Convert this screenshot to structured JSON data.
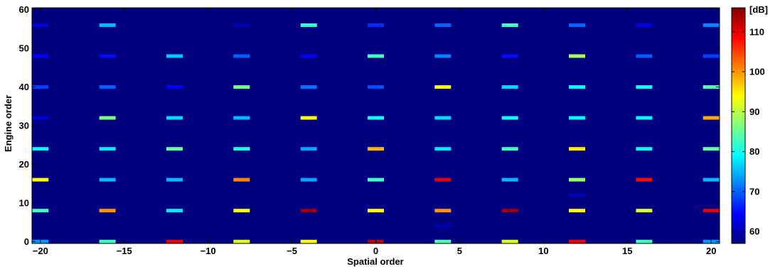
{
  "chart_data": {
    "type": "heatmap",
    "xlabel": "Spatial order",
    "ylabel": "Engine order",
    "xlim": [
      -20.5,
      20.5
    ],
    "ylim": [
      -0.5,
      60.5
    ],
    "xticks": [
      -20,
      -15,
      -10,
      -5,
      0,
      5,
      10,
      15,
      20
    ],
    "xtick_labels": [
      "−20",
      "−15",
      "−10",
      "−5",
      "0",
      "5",
      "10",
      "15",
      "20"
    ],
    "yticks": [
      0,
      10,
      20,
      30,
      40,
      50,
      60
    ],
    "ytick_labels": [
      "0",
      "10",
      "20",
      "30",
      "40",
      "50",
      "60"
    ],
    "background_value_db": 57,
    "colormap": "jet",
    "colorbar": {
      "label": "[dB]",
      "range": [
        57,
        116
      ],
      "ticks": [
        60,
        70,
        80,
        90,
        100,
        110
      ],
      "tick_labels": [
        "60",
        "70",
        "80",
        "90",
        "100",
        "110"
      ]
    },
    "grid": false,
    "cells": [
      {
        "x": -20,
        "y": 0,
        "value": 73
      },
      {
        "x": -16,
        "y": 0,
        "value": 83
      },
      {
        "x": -12,
        "y": 0,
        "value": 110
      },
      {
        "x": -8,
        "y": 0,
        "value": 92
      },
      {
        "x": -4,
        "y": 0,
        "value": 94
      },
      {
        "x": 0,
        "y": 0,
        "value": 113
      },
      {
        "x": 4,
        "y": 0,
        "value": 84
      },
      {
        "x": 8,
        "y": 0,
        "value": 92
      },
      {
        "x": 12,
        "y": 0,
        "value": 110
      },
      {
        "x": 16,
        "y": 0,
        "value": 83
      },
      {
        "x": 20,
        "y": 0,
        "value": 73
      },
      {
        "x": 4,
        "y": 4,
        "value": 60
      },
      {
        "x": -20,
        "y": 8,
        "value": 83
      },
      {
        "x": -16,
        "y": 8,
        "value": 100
      },
      {
        "x": -12,
        "y": 8,
        "value": 78
      },
      {
        "x": -8,
        "y": 8,
        "value": 94
      },
      {
        "x": -4,
        "y": 8,
        "value": 114
      },
      {
        "x": 0,
        "y": 8,
        "value": 94
      },
      {
        "x": 4,
        "y": 8,
        "value": 100
      },
      {
        "x": 8,
        "y": 8,
        "value": 114
      },
      {
        "x": 12,
        "y": 8,
        "value": 94
      },
      {
        "x": 16,
        "y": 8,
        "value": 92
      },
      {
        "x": 20,
        "y": 8,
        "value": 110
      },
      {
        "x": 12,
        "y": 12,
        "value": 60
      },
      {
        "x": -20,
        "y": 16,
        "value": 94
      },
      {
        "x": -16,
        "y": 16,
        "value": 75
      },
      {
        "x": -12,
        "y": 16,
        "value": 75
      },
      {
        "x": -8,
        "y": 16,
        "value": 101
      },
      {
        "x": -4,
        "y": 16,
        "value": 74
      },
      {
        "x": 0,
        "y": 16,
        "value": 83
      },
      {
        "x": 4,
        "y": 16,
        "value": 110
      },
      {
        "x": 8,
        "y": 16,
        "value": 75
      },
      {
        "x": 12,
        "y": 16,
        "value": 88
      },
      {
        "x": 16,
        "y": 16,
        "value": 108
      },
      {
        "x": 20,
        "y": 16,
        "value": 75
      },
      {
        "x": -20,
        "y": 24,
        "value": 79
      },
      {
        "x": -16,
        "y": 24,
        "value": 78
      },
      {
        "x": -12,
        "y": 24,
        "value": 85
      },
      {
        "x": -8,
        "y": 24,
        "value": 81
      },
      {
        "x": -4,
        "y": 24,
        "value": 74
      },
      {
        "x": 0,
        "y": 24,
        "value": 98
      },
      {
        "x": 4,
        "y": 24,
        "value": 78
      },
      {
        "x": 8,
        "y": 24,
        "value": 83
      },
      {
        "x": 12,
        "y": 24,
        "value": 95
      },
      {
        "x": 16,
        "y": 24,
        "value": 80
      },
      {
        "x": 20,
        "y": 24,
        "value": 85
      },
      {
        "x": -20,
        "y": 32,
        "value": 62
      },
      {
        "x": -16,
        "y": 32,
        "value": 86
      },
      {
        "x": -12,
        "y": 32,
        "value": 77
      },
      {
        "x": -8,
        "y": 32,
        "value": 75
      },
      {
        "x": -4,
        "y": 32,
        "value": 94
      },
      {
        "x": 0,
        "y": 32,
        "value": 80
      },
      {
        "x": 4,
        "y": 32,
        "value": 77
      },
      {
        "x": 8,
        "y": 32,
        "value": 80
      },
      {
        "x": 12,
        "y": 32,
        "value": 79
      },
      {
        "x": 16,
        "y": 32,
        "value": 79
      },
      {
        "x": 20,
        "y": 32,
        "value": 99
      },
      {
        "x": -20,
        "y": 40,
        "value": 68
      },
      {
        "x": -16,
        "y": 40,
        "value": 70
      },
      {
        "x": -12,
        "y": 40,
        "value": 64
      },
      {
        "x": -8,
        "y": 40,
        "value": 86
      },
      {
        "x": -4,
        "y": 40,
        "value": 71
      },
      {
        "x": 0,
        "y": 40,
        "value": 69
      },
      {
        "x": 4,
        "y": 40,
        "value": 94
      },
      {
        "x": 8,
        "y": 40,
        "value": 77
      },
      {
        "x": 12,
        "y": 40,
        "value": 79
      },
      {
        "x": 16,
        "y": 40,
        "value": 80
      },
      {
        "x": 20,
        "y": 40,
        "value": 84
      },
      {
        "x": -20,
        "y": 48,
        "value": 64
      },
      {
        "x": -16,
        "y": 48,
        "value": 65
      },
      {
        "x": -12,
        "y": 48,
        "value": 76
      },
      {
        "x": -8,
        "y": 48,
        "value": 70
      },
      {
        "x": -4,
        "y": 48,
        "value": 64
      },
      {
        "x": 0,
        "y": 48,
        "value": 83
      },
      {
        "x": 4,
        "y": 48,
        "value": 72
      },
      {
        "x": 8,
        "y": 48,
        "value": 65
      },
      {
        "x": 12,
        "y": 48,
        "value": 89
      },
      {
        "x": 16,
        "y": 48,
        "value": 70
      },
      {
        "x": 20,
        "y": 48,
        "value": 68
      },
      {
        "x": -20,
        "y": 56,
        "value": 62
      },
      {
        "x": -16,
        "y": 56,
        "value": 75
      },
      {
        "x": -8,
        "y": 56,
        "value": 60
      },
      {
        "x": -4,
        "y": 56,
        "value": 82
      },
      {
        "x": 0,
        "y": 56,
        "value": 67
      },
      {
        "x": 4,
        "y": 56,
        "value": 70
      },
      {
        "x": 8,
        "y": 56,
        "value": 83
      },
      {
        "x": 12,
        "y": 56,
        "value": 70
      },
      {
        "x": 16,
        "y": 56,
        "value": 63
      },
      {
        "x": 20,
        "y": 56,
        "value": 72
      }
    ]
  }
}
